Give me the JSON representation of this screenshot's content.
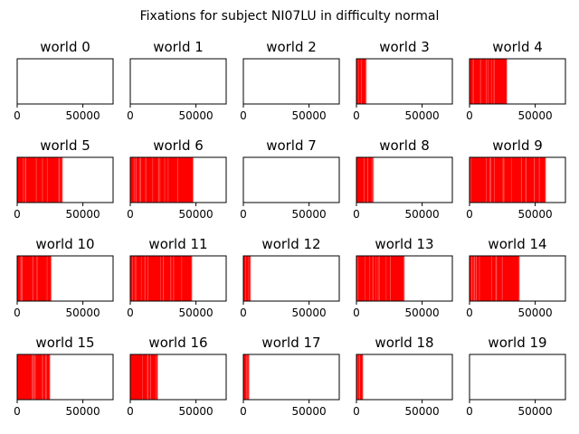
{
  "suptitle": "Fixations for subject NI07LU in difficulty normal",
  "colors": {
    "fixation": "#ff0000",
    "frame": "#000000",
    "background": "#ffffff"
  },
  "chart_data": {
    "type": "event-raster",
    "xlim": [
      0,
      73000
    ],
    "xticks": [
      0,
      50000
    ],
    "xtick_labels": [
      "0",
      "50000"
    ],
    "yticks": [],
    "panels": [
      {
        "title": "world 0",
        "span": null
      },
      {
        "title": "world 1",
        "span": null
      },
      {
        "title": "world 2",
        "span": null
      },
      {
        "title": "world 3",
        "span": [
          0,
          7500
        ]
      },
      {
        "title": "world 4",
        "span": [
          0,
          28500
        ]
      },
      {
        "title": "world 5",
        "span": [
          0,
          34500
        ]
      },
      {
        "title": "world 6",
        "span": [
          0,
          48000
        ]
      },
      {
        "title": "world 7",
        "span": null
      },
      {
        "title": "world 8",
        "span": [
          0,
          13000
        ]
      },
      {
        "title": "world 9",
        "span": [
          0,
          58000
        ]
      },
      {
        "title": "world 10",
        "span": [
          0,
          26000
        ]
      },
      {
        "title": "world 11",
        "span": [
          0,
          47000
        ]
      },
      {
        "title": "world 12",
        "span": [
          0,
          5500
        ]
      },
      {
        "title": "world 13",
        "span": [
          0,
          36500
        ]
      },
      {
        "title": "world 14",
        "span": [
          0,
          38000
        ]
      },
      {
        "title": "world 15",
        "span": [
          0,
          25000
        ]
      },
      {
        "title": "world 16",
        "span": [
          0,
          21000
        ]
      },
      {
        "title": "world 17",
        "span": [
          0,
          4500
        ]
      },
      {
        "title": "world 18",
        "span": [
          0,
          5000
        ]
      },
      {
        "title": "world 19",
        "span": null
      }
    ]
  }
}
